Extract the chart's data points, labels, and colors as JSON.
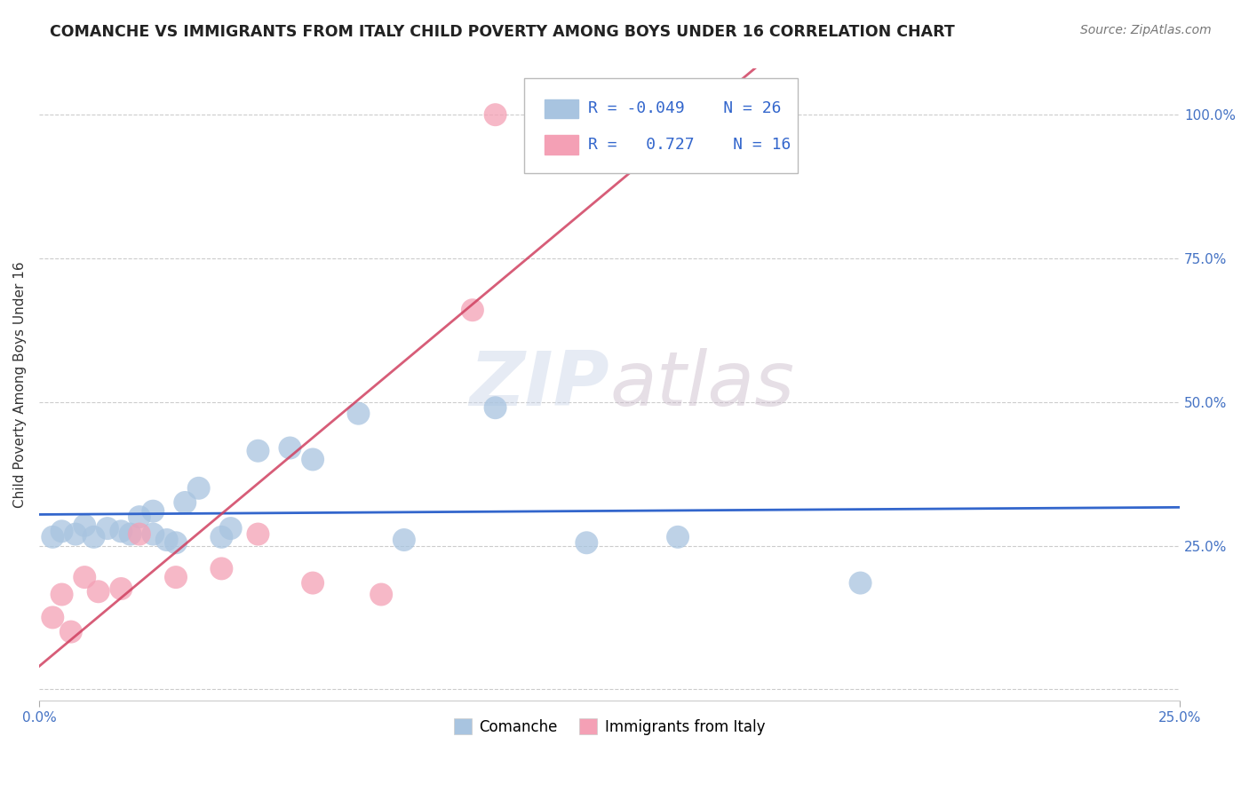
{
  "title": "COMANCHE VS IMMIGRANTS FROM ITALY CHILD POVERTY AMONG BOYS UNDER 16 CORRELATION CHART",
  "source": "Source: ZipAtlas.com",
  "ylabel": "Child Poverty Among Boys Under 16",
  "xlim": [
    0.0,
    0.25
  ],
  "ylim": [
    -0.02,
    1.08
  ],
  "yticks": [
    0.0,
    0.25,
    0.5,
    0.75,
    1.0
  ],
  "ytick_labels": [
    "",
    "25.0%",
    "50.0%",
    "75.0%",
    "100.0%"
  ],
  "xtick_labels": [
    "0.0%",
    "25.0%"
  ],
  "watermark": "ZIPatlas",
  "legend_comanche": "Comanche",
  "legend_italy": "Immigrants from Italy",
  "R_comanche": "-0.049",
  "N_comanche": "26",
  "R_italy": "0.727",
  "N_italy": "16",
  "comanche_color": "#a8c4e0",
  "italy_color": "#f4a0b5",
  "comanche_line_color": "#3366cc",
  "italy_line_color": "#d04060",
  "comanche_scatter_x": [
    0.003,
    0.005,
    0.008,
    0.01,
    0.012,
    0.015,
    0.018,
    0.02,
    0.022,
    0.025,
    0.025,
    0.028,
    0.03,
    0.032,
    0.035,
    0.04,
    0.042,
    0.048,
    0.055,
    0.06,
    0.07,
    0.08,
    0.1,
    0.12,
    0.14,
    0.18
  ],
  "comanche_scatter_y": [
    0.265,
    0.275,
    0.27,
    0.285,
    0.265,
    0.28,
    0.275,
    0.27,
    0.3,
    0.27,
    0.31,
    0.26,
    0.255,
    0.325,
    0.35,
    0.265,
    0.28,
    0.415,
    0.42,
    0.4,
    0.48,
    0.26,
    0.49,
    0.255,
    0.265,
    0.185
  ],
  "italy_scatter_x": [
    0.003,
    0.005,
    0.007,
    0.01,
    0.013,
    0.018,
    0.022,
    0.03,
    0.04,
    0.048,
    0.06,
    0.075,
    0.095,
    0.1,
    0.12,
    0.145
  ],
  "italy_scatter_y": [
    0.125,
    0.165,
    0.1,
    0.195,
    0.17,
    0.175,
    0.27,
    0.195,
    0.21,
    0.27,
    0.185,
    0.165,
    0.66,
    1.0,
    1.0,
    1.0
  ],
  "title_fontsize": 12.5,
  "axis_label_fontsize": 11,
  "tick_fontsize": 11,
  "source_fontsize": 10,
  "legend_fontsize": 12
}
